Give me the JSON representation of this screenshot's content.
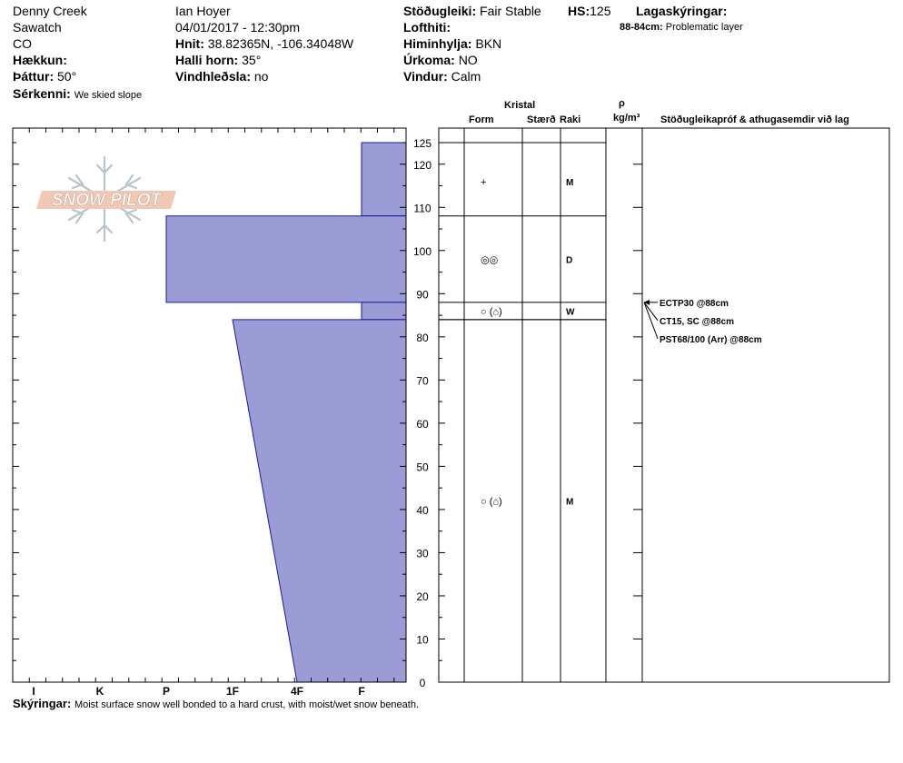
{
  "header": {
    "location": "Denny Creek",
    "range": "Sawatch",
    "state": "CO",
    "elevation_label": "Hækkun:",
    "aspect_label": "Þáttur:",
    "aspect_value": "50°",
    "features_label": "Sérkenni:",
    "features_value": "We skied slope",
    "observer": "Ian Hoyer",
    "datetime": "04/01/2017 - 12:30pm",
    "coords_label": "Hnit:",
    "coords_value": "38.82365N, -106.34048W",
    "slope_label": "Halli horn:",
    "slope_value": "35°",
    "wind_loading_label": "Vindhleðsla:",
    "wind_loading_value": "no",
    "stability_label": "Stöðugleiki:",
    "stability_value": "Fair Stable",
    "hs_label": "HS:",
    "hs_value": "125",
    "air_temp_label": "Lofthiti:",
    "sky_label": "Himinhylja:",
    "sky_value": "BKN",
    "precip_label": "Úrkoma:",
    "precip_value": "NO",
    "wind_label": "Vindur:",
    "wind_value": "Calm",
    "layer_notes_label": "Lagaskýringar:",
    "layer_note_range": "88-84cm:",
    "layer_note_text": "Problematic layer"
  },
  "logo": {
    "text": "SNOW PILOT"
  },
  "columns": {
    "kristal": "Kristal",
    "form": "Form",
    "size": "Stærð",
    "moisture": "Raki",
    "rho": "ρ",
    "density_unit": "kg/m³",
    "tests": "Stöðugleikapróf & athugasemdir við lag"
  },
  "footer": {
    "label": "Skýringar:",
    "text": "Moist surface snow well bonded to a hard crust, with moist/wet snow beneath."
  },
  "chart_data": {
    "type": "area",
    "title": "",
    "y_axis": {
      "range": [
        0,
        125
      ],
      "ticks": [
        0,
        10,
        20,
        30,
        40,
        50,
        60,
        70,
        80,
        90,
        100,
        110,
        120,
        125
      ]
    },
    "x_axis": {
      "categories": [
        "I",
        "K",
        "P",
        "1F",
        "4F",
        "F"
      ],
      "reversed_hardness": true
    },
    "hardness_profile": [
      {
        "top": 125,
        "bottom": 108,
        "hardness_top": "F",
        "hardness_bottom": "F"
      },
      {
        "top": 108,
        "bottom": 88,
        "hardness_top": "P",
        "hardness_bottom": "P"
      },
      {
        "top": 88,
        "bottom": 84,
        "hardness_top": "F",
        "hardness_bottom": "F"
      },
      {
        "top": 84,
        "bottom": 0,
        "hardness_top": "1F",
        "hardness_bottom": "4F"
      }
    ],
    "layers": [
      {
        "top": 125,
        "bottom": 108,
        "form": "+",
        "moisture": "M",
        "symbol_at": 116
      },
      {
        "top": 108,
        "bottom": 88,
        "form": "◎◎",
        "moisture": "D",
        "symbol_at": 98
      },
      {
        "top": 88,
        "bottom": 84,
        "form": "○ (⌂)",
        "moisture": "W",
        "symbol_at": 86
      },
      {
        "top": 84,
        "bottom": 0,
        "form": "○ (⌂)",
        "moisture": "M",
        "symbol_at": 42
      }
    ],
    "tests": [
      {
        "text": "ECTP30 @88cm",
        "depth": 88
      },
      {
        "text": "CT15, SC @88cm",
        "depth": 88
      },
      {
        "text": "PST68/100 (Arr) @88cm",
        "depth": 88
      }
    ],
    "colors": {
      "fill": "#9b9bd6",
      "stroke": "#1a1a99"
    }
  }
}
